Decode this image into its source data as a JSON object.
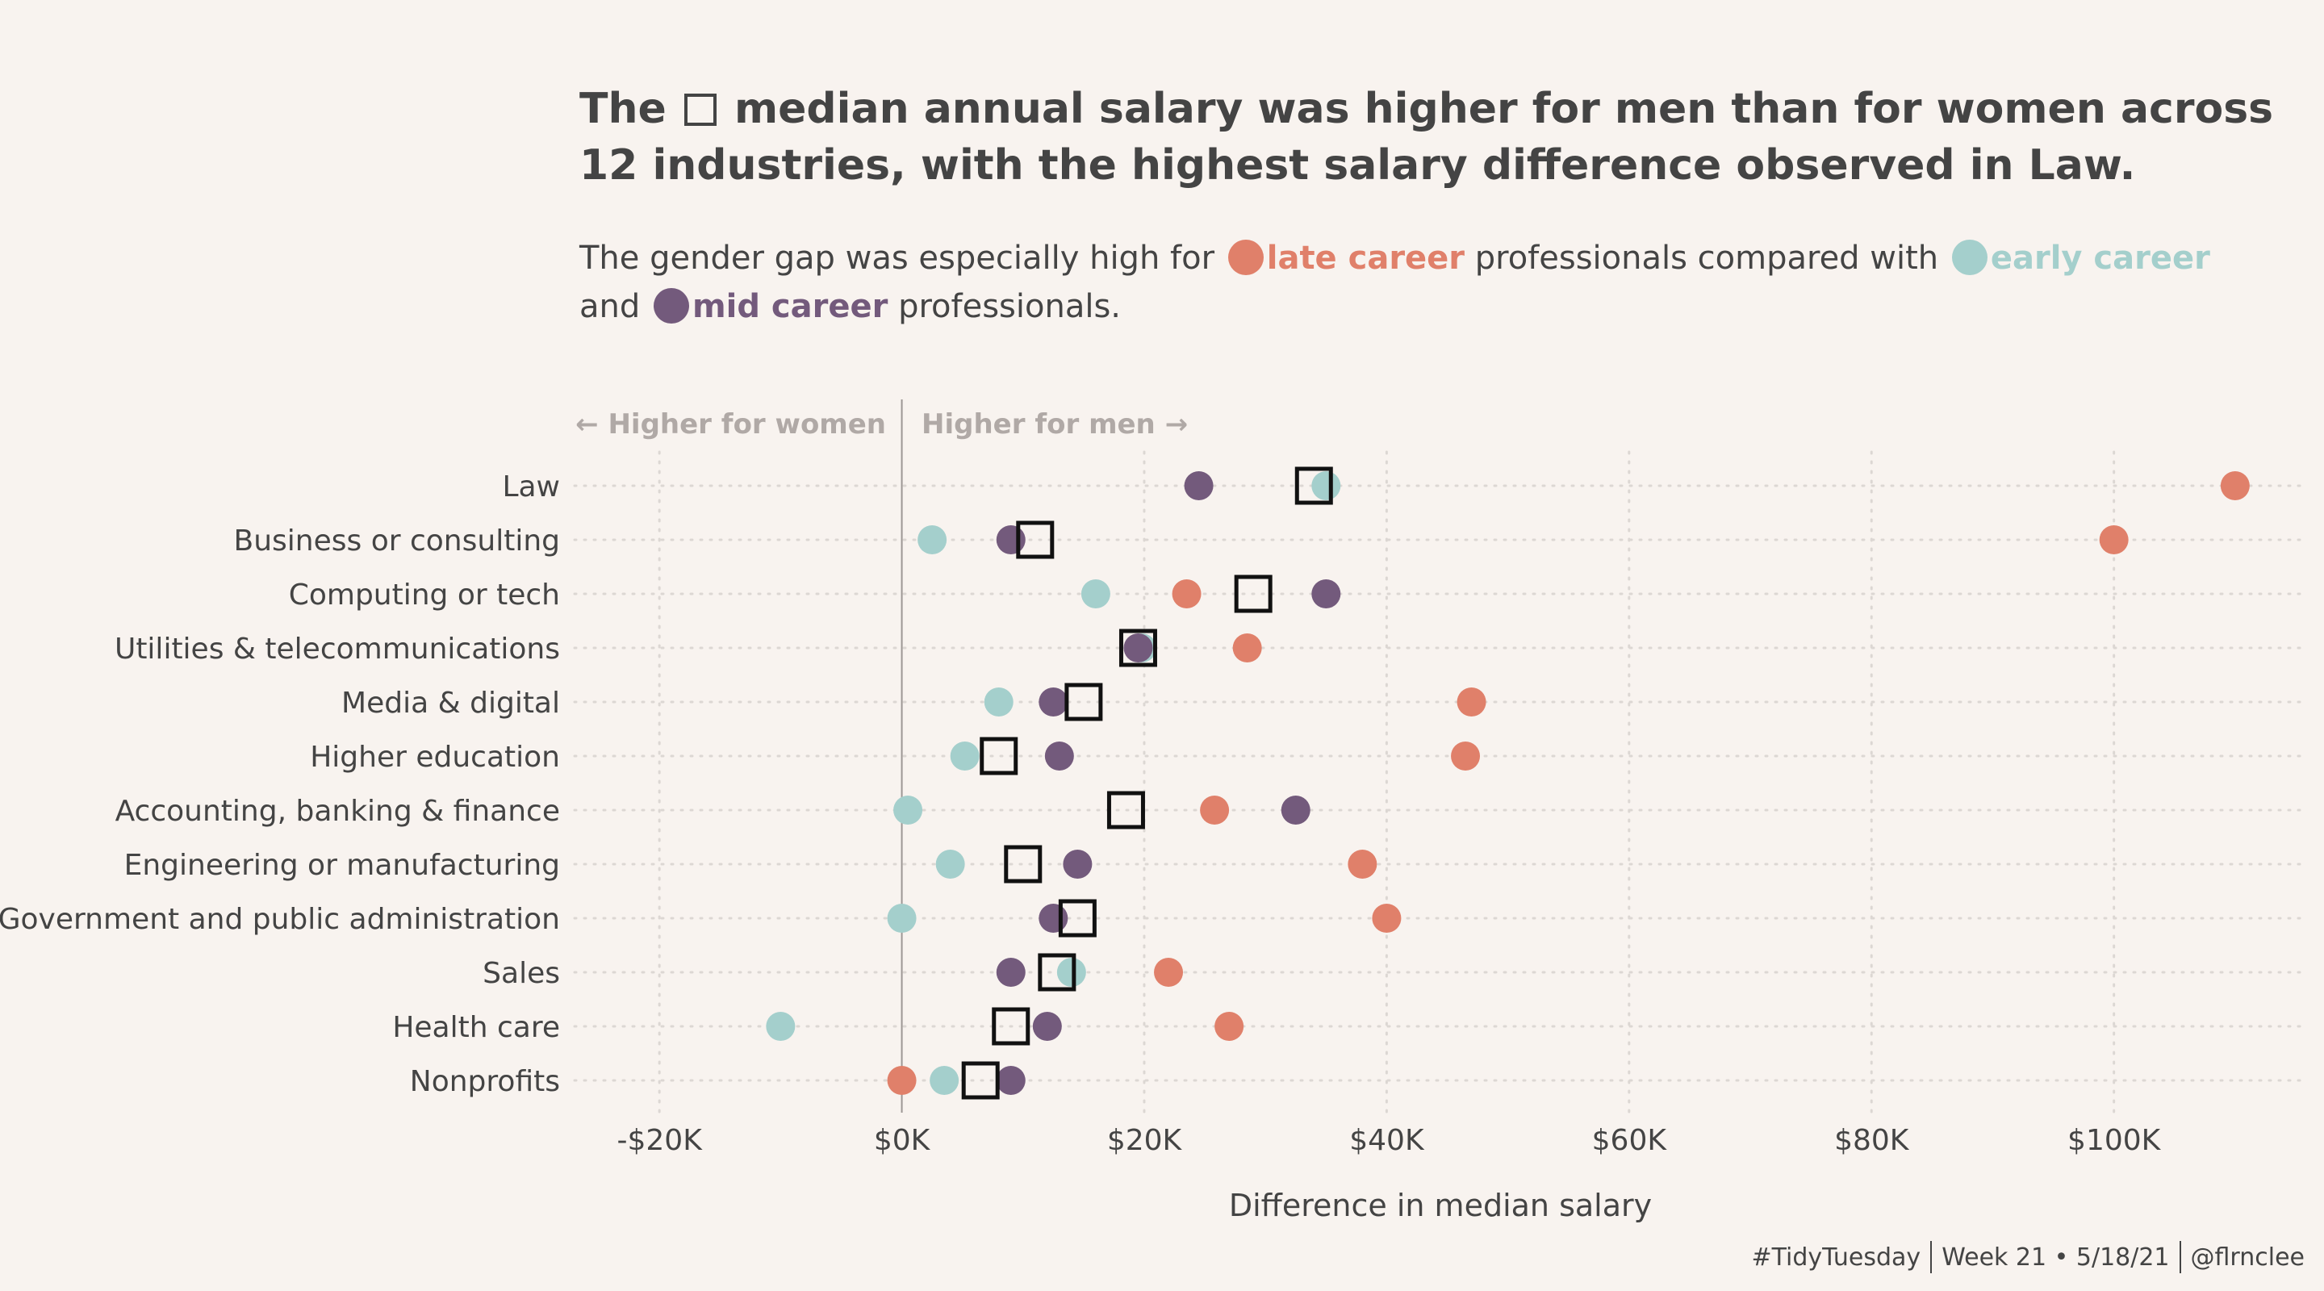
{
  "title": {
    "part1": "The",
    "part2": "median annual salary was higher for men than for women across 12 industries, with the highest salary difference observed in Law."
  },
  "subtitle": {
    "text1": "The gender gap was especially high for",
    "late_label": "late career",
    "text2": "professionals compared with",
    "early_label": "early career",
    "text3": "and",
    "mid_label": "mid career",
    "text4": "professionals."
  },
  "colors": {
    "late": "#e0806a",
    "early": "#a4cfcc",
    "mid": "#735a7c",
    "median": "#111111",
    "background": "#f8f3ef"
  },
  "annotations": {
    "left": "← Higher for women",
    "right": "Higher for men →"
  },
  "credits": {
    "tag": "#TidyTuesday",
    "week": "Week 21 • 5/18/21",
    "handle": "@flrnclee"
  },
  "chart_data": {
    "type": "scatter",
    "xlabel": "Difference in median salary",
    "xlim": [
      -27000,
      116000
    ],
    "xticks": [
      -20000,
      0,
      20000,
      40000,
      60000,
      80000,
      100000
    ],
    "xtick_labels": [
      "-$20K",
      "$0K",
      "$20K",
      "$40K",
      "$60K",
      "$80K",
      "$100K"
    ],
    "grid": true,
    "categories": [
      "Law",
      "Business or consulting",
      "Computing or tech",
      "Utilities & telecommunications",
      "Media & digital",
      "Higher education",
      "Accounting, banking & finance",
      "Engineering or manufacturing",
      "Government and public administration",
      "Sales",
      "Health care",
      "Nonprofits"
    ],
    "series": [
      {
        "key": "early",
        "values": [
          35000,
          2500,
          16000,
          19800,
          8000,
          5200,
          500,
          4000,
          0,
          14000,
          -10000,
          3500
        ]
      },
      {
        "key": "mid",
        "values": [
          24500,
          9000,
          35000,
          19500,
          12500,
          13000,
          32500,
          14500,
          12500,
          9000,
          12000,
          9000
        ]
      },
      {
        "key": "late",
        "values": [
          110000,
          100000,
          23500,
          28500,
          47000,
          46500,
          25800,
          38000,
          40000,
          22000,
          27000,
          0
        ]
      },
      {
        "key": "median",
        "values": [
          34000,
          11000,
          29000,
          19500,
          15000,
          8000,
          18500,
          10000,
          14500,
          12800,
          9000,
          6500
        ]
      }
    ]
  }
}
